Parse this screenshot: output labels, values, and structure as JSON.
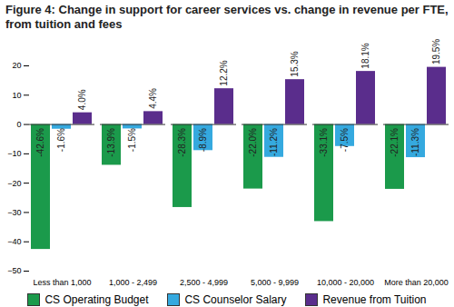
{
  "chart_data": {
    "type": "bar",
    "title": "Figure 4: Change in support for career services vs. change in revenue per FTE, from tuition and fees",
    "categories": [
      "Less than 1,000",
      "1,000 - 2,499",
      "2,500 - 4,999",
      "5,000 - 9,999",
      "10,000 - 20,000",
      "More than 20,000"
    ],
    "series": [
      {
        "name": "CS Operating Budget",
        "color": "#1b9a4b",
        "values": [
          -42.6,
          -13.9,
          -28.3,
          -22.0,
          -33.1,
          -22.1
        ],
        "value_labels": [
          "-42.6%",
          "-13.9%",
          "-28.3%",
          "-22.0%",
          "-33.1%",
          "-22.1%"
        ]
      },
      {
        "name": "CS Counselor Salary",
        "color": "#35a9df",
        "values": [
          -1.6,
          -1.5,
          -8.9,
          -11.2,
          -7.5,
          -11.3
        ],
        "value_labels": [
          "-1.6%",
          "-1.5%",
          "-8.9%",
          "-11.2%",
          "-7.5%",
          "-11.3%"
        ]
      },
      {
        "name": "Revenue from Tuition",
        "color": "#5a2d8c",
        "values": [
          4.0,
          4.4,
          12.2,
          15.3,
          18.1,
          19.5
        ],
        "value_labels": [
          "4.0%",
          "4.4%",
          "12.2%",
          "15.3%",
          "18.1%",
          "19.5%"
        ]
      }
    ],
    "ylim": [
      -50,
      20
    ],
    "yticks": [
      -50,
      -40,
      -30,
      -20,
      -10,
      0,
      10,
      20
    ],
    "grid": false,
    "legend": "bottom",
    "data_labels": true
  }
}
